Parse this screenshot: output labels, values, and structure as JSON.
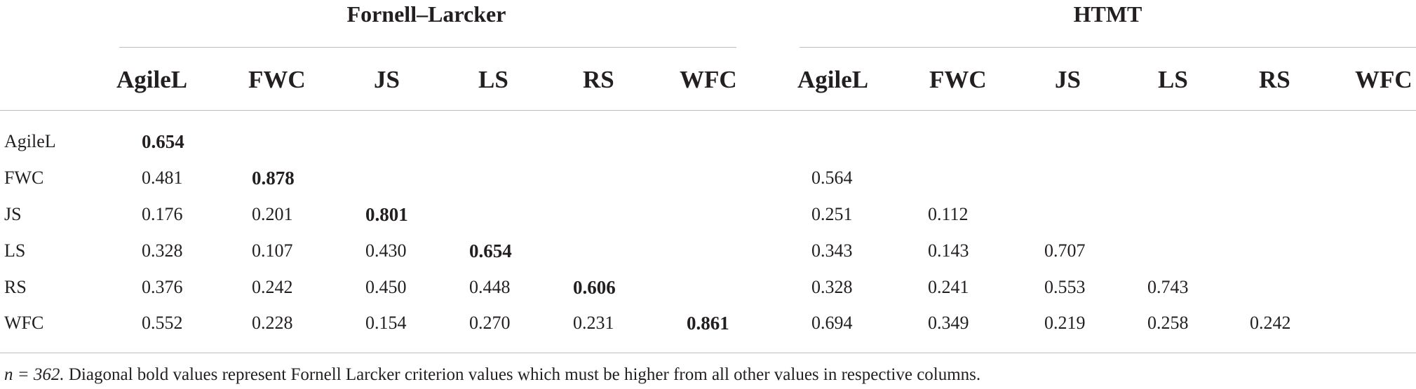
{
  "groups": {
    "fornell_larcker": "Fornell–Larcker",
    "htmt": "HTMT"
  },
  "columns": [
    "AgileL",
    "FWC",
    "JS",
    "LS",
    "RS",
    "WFC"
  ],
  "rows": [
    {
      "label": "AgileL",
      "fl": [
        "0.654",
        "",
        "",
        "",
        "",
        ""
      ],
      "htmt": [
        "",
        "",
        "",
        "",
        "",
        ""
      ]
    },
    {
      "label": "FWC",
      "fl": [
        "0.481",
        "0.878",
        "",
        "",
        "",
        ""
      ],
      "htmt": [
        "0.564",
        "",
        "",
        "",
        "",
        ""
      ]
    },
    {
      "label": "JS",
      "fl": [
        "0.176",
        "0.201",
        "0.801",
        "",
        "",
        ""
      ],
      "htmt": [
        "0.251",
        "0.112",
        "",
        "",
        "",
        ""
      ]
    },
    {
      "label": "LS",
      "fl": [
        "0.328",
        "0.107",
        "0.430",
        "0.654",
        "",
        ""
      ],
      "htmt": [
        "0.343",
        "0.143",
        "0.707",
        "",
        "",
        ""
      ]
    },
    {
      "label": "RS",
      "fl": [
        "0.376",
        "0.242",
        "0.450",
        "0.448",
        "0.606",
        ""
      ],
      "htmt": [
        "0.328",
        "0.241",
        "0.553",
        "0.743",
        "",
        ""
      ]
    },
    {
      "label": "WFC",
      "fl": [
        "0.552",
        "0.228",
        "0.154",
        "0.270",
        "0.231",
        "0.861"
      ],
      "htmt": [
        "0.694",
        "0.349",
        "0.219",
        "0.258",
        "0.242",
        ""
      ]
    }
  ],
  "footnote": {
    "n": "n = 362.",
    "text": " Diagonal bold values represent Fornell Larcker criterion values which must be higher from all other values in respective columns."
  }
}
